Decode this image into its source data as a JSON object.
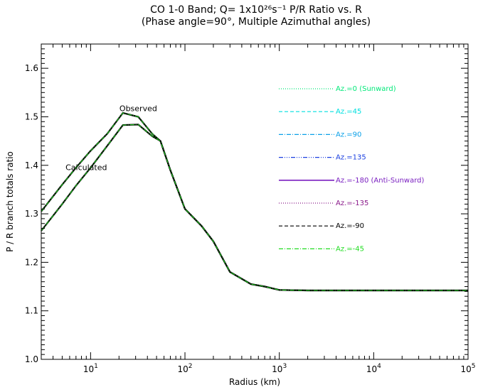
{
  "chart_data": {
    "type": "line",
    "title_line1": "CO 1-0 Band; Q= 1x10²⁶s⁻¹ P/R Ratio vs. R",
    "title_line2": "(Phase angle=90°,  Multiple Azimuthal angles)",
    "xlabel": "Radius (km)",
    "ylabel": "P / R branch totals ratio",
    "xscale": "log",
    "xlim": [
      3,
      100000
    ],
    "ylim": [
      1.0,
      1.65
    ],
    "xtick_labels": [
      {
        "base": "10",
        "exp": "1",
        "value": 10
      },
      {
        "base": "10",
        "exp": "2",
        "value": 100
      },
      {
        "base": "10",
        "exp": "3",
        "value": 1000
      },
      {
        "base": "10",
        "exp": "4",
        "value": 10000
      },
      {
        "base": "10",
        "exp": "5",
        "value": 100000
      }
    ],
    "yticks": [
      1.0,
      1.1,
      1.2,
      1.3,
      1.4,
      1.5,
      1.6
    ],
    "ytick_labels": [
      "1.0",
      "1.1",
      "1.2",
      "1.3",
      "1.4",
      "1.5",
      "1.6"
    ],
    "grid": false,
    "legend_position": "right",
    "annotations": [
      {
        "text": "Observed",
        "x": 32,
        "y": 1.512
      },
      {
        "text": "Calculated",
        "x": 9,
        "y": 1.39
      }
    ],
    "curves": {
      "observed": {
        "x": [
          3,
          5,
          7,
          10,
          15,
          22,
          32,
          45,
          55,
          70,
          100,
          150,
          200,
          300,
          500,
          700,
          1000,
          2000,
          5000,
          10000,
          100000
        ],
        "y": [
          1.305,
          1.36,
          1.395,
          1.43,
          1.465,
          1.508,
          1.5,
          1.465,
          1.45,
          1.39,
          1.31,
          1.275,
          1.243,
          1.18,
          1.155,
          1.15,
          1.143,
          1.142,
          1.142,
          1.142,
          1.142
        ]
      },
      "calculated": {
        "x": [
          3,
          5,
          7,
          10,
          15,
          22,
          32,
          45,
          55,
          70,
          100,
          150,
          200,
          300,
          500,
          700,
          1000,
          2000,
          5000,
          10000,
          100000
        ],
        "y": [
          1.265,
          1.32,
          1.358,
          1.395,
          1.44,
          1.483,
          1.484,
          1.46,
          1.45,
          1.39,
          1.31,
          1.275,
          1.243,
          1.18,
          1.155,
          1.15,
          1.143,
          1.142,
          1.142,
          1.142,
          1.142
        ]
      }
    },
    "series": [
      {
        "name": "Az.=0 (Sunward)",
        "color": "#00e878",
        "dash": "dotted"
      },
      {
        "name": "Az.=45",
        "color": "#00e0e0",
        "dash": "dashed"
      },
      {
        "name": "Az.=90",
        "color": "#0aa0e8",
        "dash": "dashdot"
      },
      {
        "name": "Az.=135",
        "color": "#1a3fe0",
        "dash": "dashdotdotdot"
      },
      {
        "name": "Az.=-180 (Anti-Sunward)",
        "color": "#7a1fc0",
        "dash": "solid"
      },
      {
        "name": "Az.=-135",
        "color": "#8a1a8a",
        "dash": "dotted"
      },
      {
        "name": "Az.=-90",
        "color": "#000000",
        "dash": "dashed"
      },
      {
        "name": "Az.=-45",
        "color": "#22dd22",
        "dash": "dashdot"
      }
    ]
  }
}
